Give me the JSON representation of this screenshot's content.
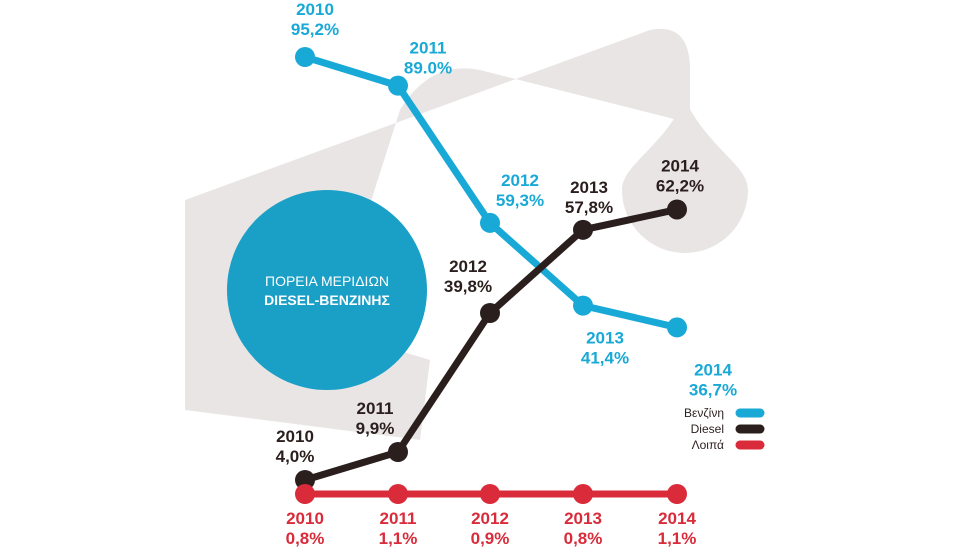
{
  "title": {
    "line1": "ΠΟΡΕΙΑ ΜΕΡΙΔΙΩΝ",
    "line2": "DIESEL-ΒΕΝΖΙΝΗΣ"
  },
  "colors": {
    "benzine": "#19a9d6",
    "diesel": "#2b1f1e",
    "other": "#d92b3a",
    "pump_shape": "#e9e5e5",
    "circle": "#1a9fc6"
  },
  "chart_data": {
    "type": "line",
    "x": [
      "2010",
      "2011",
      "2012",
      "2013",
      "2014"
    ],
    "ylim": [
      0,
      100
    ],
    "legend_position": "bottom-right",
    "grid": false,
    "series": [
      {
        "name": "Βενζίνη",
        "values": [
          95.2,
          89.0,
          59.3,
          41.4,
          36.7
        ],
        "labels": [
          "95,2%",
          "89.0%",
          "59,3%",
          "41,4%",
          "36,7%"
        ]
      },
      {
        "name": "Diesel",
        "values": [
          4.0,
          9.9,
          39.8,
          57.8,
          62.2
        ],
        "labels": [
          "4,0%",
          "9,9%",
          "39,8%",
          "57,8%",
          "62,2%"
        ]
      },
      {
        "name": "Λοιπά",
        "values": [
          0.8,
          1.1,
          0.9,
          0.8,
          1.1
        ],
        "labels": [
          "0,8%",
          "1,1%",
          "0,9%",
          "0,8%",
          "1,1%"
        ]
      }
    ]
  }
}
